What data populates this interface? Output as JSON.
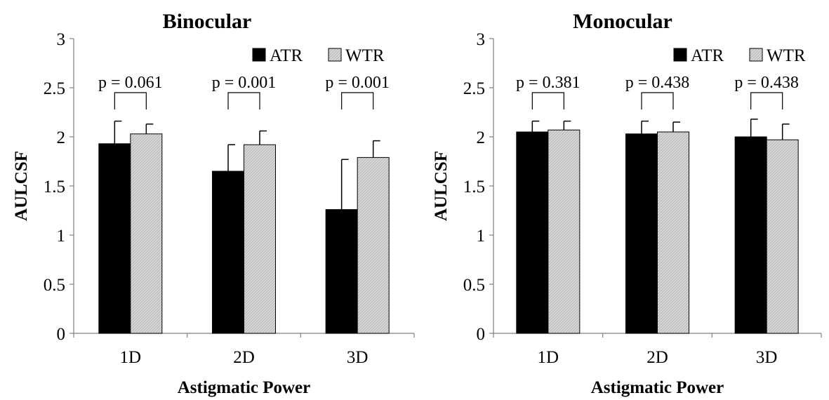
{
  "colors": {
    "atr": "#000000",
    "wtr": "#d8d8d8",
    "wtr_hatch": "#b0b0b0",
    "axis": "#808080",
    "text": "#000000"
  },
  "chart_data": [
    {
      "type": "bar",
      "title": "Binocular",
      "xlabel": "Astigmatic Power",
      "ylabel": "AULCSF",
      "ylim": [
        0,
        3
      ],
      "yticks": [
        "0",
        "0.5",
        "1",
        "1.5",
        "2",
        "2.5",
        "3"
      ],
      "categories": [
        "1D",
        "2D",
        "3D"
      ],
      "legend": "top-right",
      "grid": false,
      "series": [
        {
          "name": "ATR",
          "values": [
            1.93,
            1.65,
            1.26
          ],
          "errors": [
            0.23,
            0.27,
            0.51
          ]
        },
        {
          "name": "WTR",
          "values": [
            2.03,
            1.92,
            1.79
          ],
          "errors": [
            0.1,
            0.14,
            0.17
          ]
        }
      ],
      "annotations": [
        "p = 0.061",
        "p = 0.001",
        "p = 0.001"
      ]
    },
    {
      "type": "bar",
      "title": "Monocular",
      "xlabel": "Astigmatic Power",
      "ylabel": "AULCSF",
      "ylim": [
        0,
        3
      ],
      "yticks": [
        "0",
        "0.5",
        "1",
        "1.5",
        "2",
        "2.5",
        "3"
      ],
      "categories": [
        "1D",
        "2D",
        "3D"
      ],
      "legend": "top-right",
      "grid": false,
      "series": [
        {
          "name": "ATR",
          "values": [
            2.05,
            2.03,
            2.0
          ],
          "errors": [
            0.11,
            0.13,
            0.18
          ]
        },
        {
          "name": "WTR",
          "values": [
            2.07,
            2.05,
            1.97
          ],
          "errors": [
            0.09,
            0.1,
            0.16
          ]
        }
      ],
      "annotations": [
        "p = 0.381",
        "p = 0.438",
        "p = 0.438"
      ]
    }
  ]
}
